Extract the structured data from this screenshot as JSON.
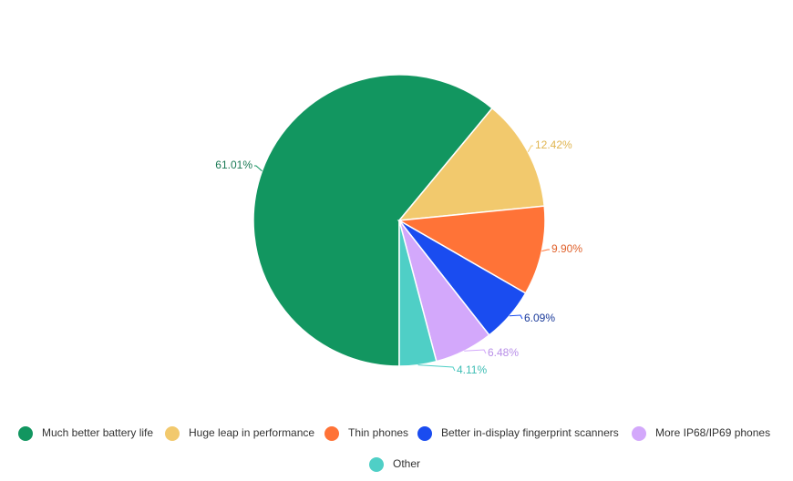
{
  "chart_data": {
    "type": "pie",
    "categories": [
      "Much better battery life",
      "Huge leap in performance",
      "Thin phones",
      "Better in-display fingerprint scanners",
      "More IP68/IP69 phones",
      "Other"
    ],
    "values": [
      61.01,
      12.42,
      9.9,
      6.09,
      6.48,
      4.11
    ],
    "value_labels": [
      "61.01%",
      "12.42%",
      "9.90%",
      "6.09%",
      "6.48%",
      "4.11%"
    ],
    "colors": [
      "#129660",
      "#f2c96d",
      "#ff7337",
      "#1a4cf0",
      "#d3a8fb",
      "#4fcfc6"
    ]
  }
}
